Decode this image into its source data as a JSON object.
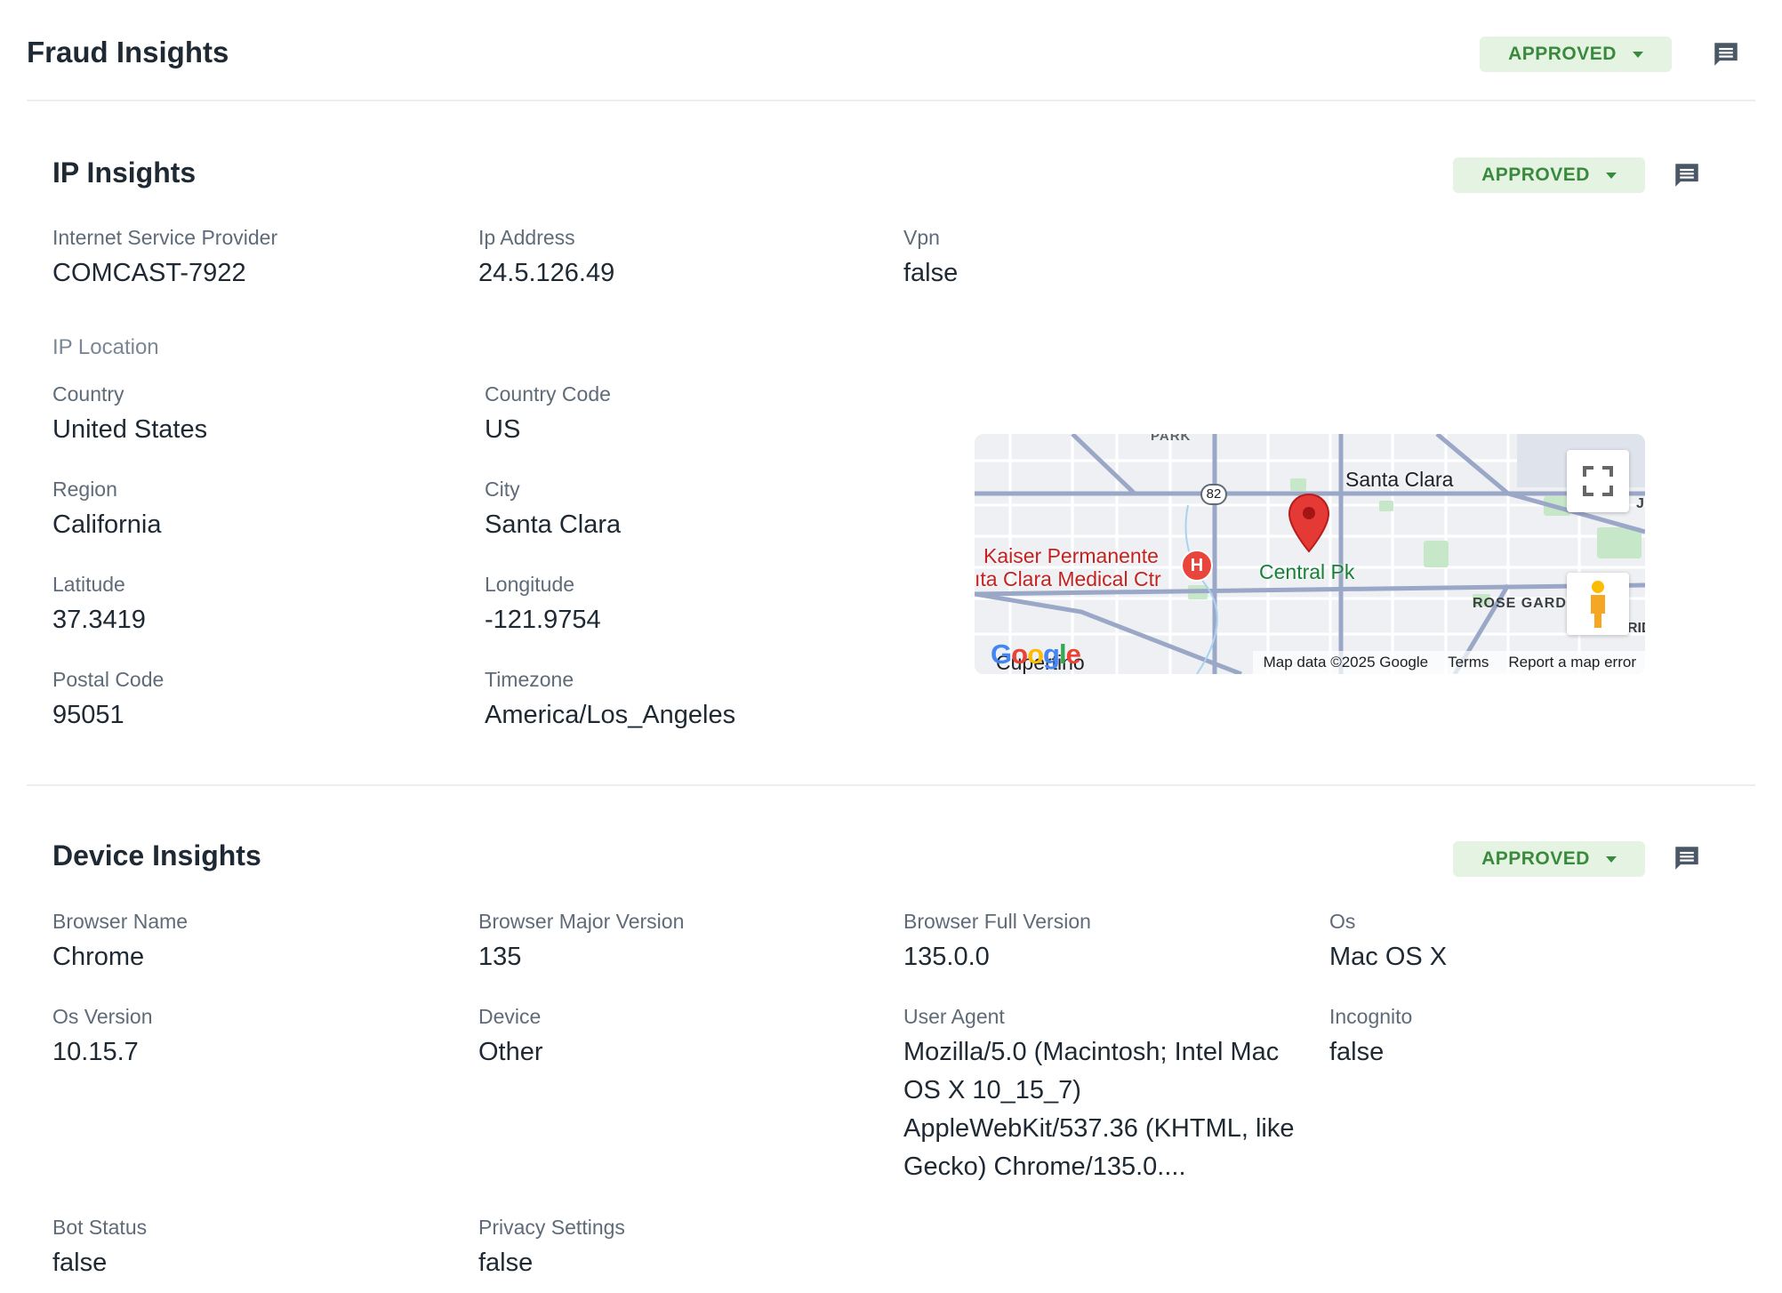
{
  "header": {
    "title": "Fraud Insights",
    "status": "APPROVED"
  },
  "ip_insights": {
    "title": "IP Insights",
    "status": "APPROVED",
    "fields": [
      {
        "label": "Internet Service Provider",
        "value": "COMCAST-7922"
      },
      {
        "label": "Ip Address",
        "value": "24.5.126.49"
      },
      {
        "label": "Vpn",
        "value": "false"
      }
    ],
    "location": {
      "heading": "IP Location",
      "fields": [
        {
          "label": "Country",
          "value": "United States"
        },
        {
          "label": "Country Code",
          "value": "US"
        },
        {
          "label": "Region",
          "value": "California"
        },
        {
          "label": "City",
          "value": "Santa Clara"
        },
        {
          "label": "Latitude",
          "value": "37.3419"
        },
        {
          "label": "Longitude",
          "value": "-121.9754"
        },
        {
          "label": "Postal Code",
          "value": "95051"
        },
        {
          "label": "Timezone",
          "value": "America/Los_Angeles"
        }
      ]
    },
    "map": {
      "labels": {
        "park": "PARK",
        "city": "Santa Clara",
        "hospital_line1": "Kaiser Permanente",
        "hospital_line2": "ıta Clara Medical Ctr",
        "central": "Central Pk",
        "rose": "ROSE GARDI",
        "route": "82",
        "cupertino": "Cupertino",
        "edge_j": "J",
        "edge_rid": "RID",
        "hospital_marker": "H"
      },
      "logo": "Google",
      "footer": {
        "data": "Map data ©2025 Google",
        "terms": "Terms",
        "report": "Report a map error"
      }
    }
  },
  "device_insights": {
    "title": "Device Insights",
    "status": "APPROVED",
    "fields": [
      {
        "label": "Browser Name",
        "value": "Chrome"
      },
      {
        "label": "Browser Major Version",
        "value": "135"
      },
      {
        "label": "Browser Full Version",
        "value": "135.0.0"
      },
      {
        "label": "Os",
        "value": "Mac OS X"
      },
      {
        "label": "Os Version",
        "value": "10.15.7"
      },
      {
        "label": "Device",
        "value": "Other"
      },
      {
        "label": "User Agent",
        "value": "Mozilla/5.0 (Macintosh; Intel Mac OS X 10_15_7) AppleWebKit/537.36 (KHTML, like Gecko) Chrome/135.0...."
      },
      {
        "label": "Incognito",
        "value": "false"
      },
      {
        "label": "Bot Status",
        "value": "false"
      },
      {
        "label": "Privacy Settings",
        "value": "false"
      }
    ]
  },
  "colors": {
    "approved_bg": "#e5f4e2",
    "approved_text": "#3a8a3e",
    "icon": "#4a5866"
  },
  "icons": {
    "status_dropdown": "caret-down-icon",
    "comment": "comment-icon",
    "fullscreen": "fullscreen-icon",
    "pegman": "pegman-icon",
    "marker": "map-marker-icon",
    "hospital": "hospital-icon"
  }
}
